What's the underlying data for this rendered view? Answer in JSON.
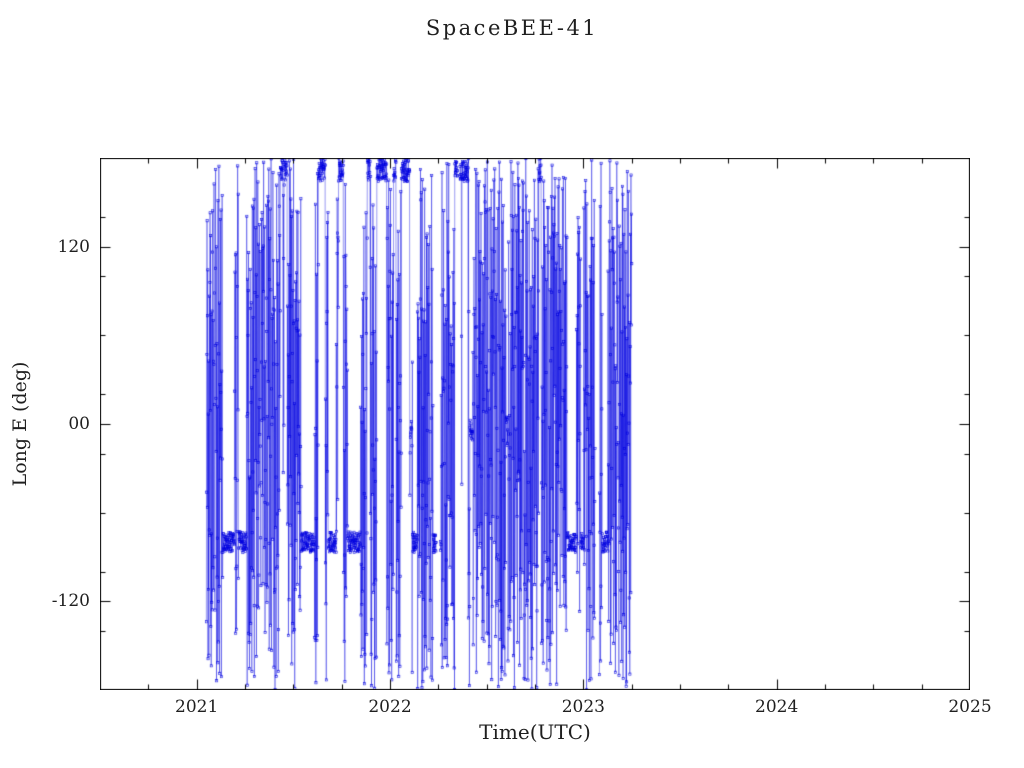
{
  "chart_data": {
    "type": "line",
    "title": "SpaceBEE-41",
    "xlabel": "Time(UTC)",
    "ylabel": "Long E (deg)",
    "xlim": [
      2020.5,
      2025.0
    ],
    "ylim": [
      -180,
      180
    ],
    "xticks": [
      2021,
      2022,
      2023,
      2024,
      2025
    ],
    "xtick_labels": [
      "2021",
      "2022",
      "2023",
      "2024",
      "2025"
    ],
    "xtick_minor_step": 0.25,
    "yticks": [
      -120,
      0,
      120
    ],
    "ytick_labels": [
      "-120",
      "00",
      "120"
    ],
    "ytick_minor_step": 40,
    "grid": false,
    "legend": "none",
    "series_color": "#0000e0",
    "axis_color": "#000000",
    "marker": "open-square",
    "data_start": 2021.05,
    "data_end": 2023.25,
    "description": "Dense longitude-vs-time track: rapidly wrapping longitude between -180 and 180 deg from early 2021 to early 2023, with persistent dense bands near -80 deg and near 170 deg, a looser cluster near 65 deg mid-2021 to mid-2022, and no data after 2023.25.",
    "synthesis": {
      "seed": 17,
      "dt_years": 0.0012,
      "initial_longitude": 160,
      "step_min_deg": 20,
      "step_max_deg": 260,
      "gap_probability": 0.0025,
      "gap_min_years": 0.006,
      "gap_max_years": 0.025,
      "dwell_bands": [
        {
          "center": -80,
          "halfwidth": 7,
          "enter_prob": 0.008,
          "min_steps": 12,
          "max_steps": 60,
          "t_start": 2021.05,
          "t_end": 2023.25
        },
        {
          "center": 172,
          "halfwidth": 8,
          "enter_prob": 0.008,
          "min_steps": 8,
          "max_steps": 45,
          "t_start": 2021.05,
          "t_end": 2023.25
        },
        {
          "center": 65,
          "halfwidth": 15,
          "enter_prob": 0.004,
          "min_steps": 8,
          "max_steps": 30,
          "t_start": 2021.5,
          "t_end": 2022.7
        },
        {
          "center": -5,
          "halfwidth": 10,
          "enter_prob": 0.003,
          "min_steps": 8,
          "max_steps": 25,
          "t_start": 2021.3,
          "t_end": 2023.0
        }
      ]
    }
  }
}
